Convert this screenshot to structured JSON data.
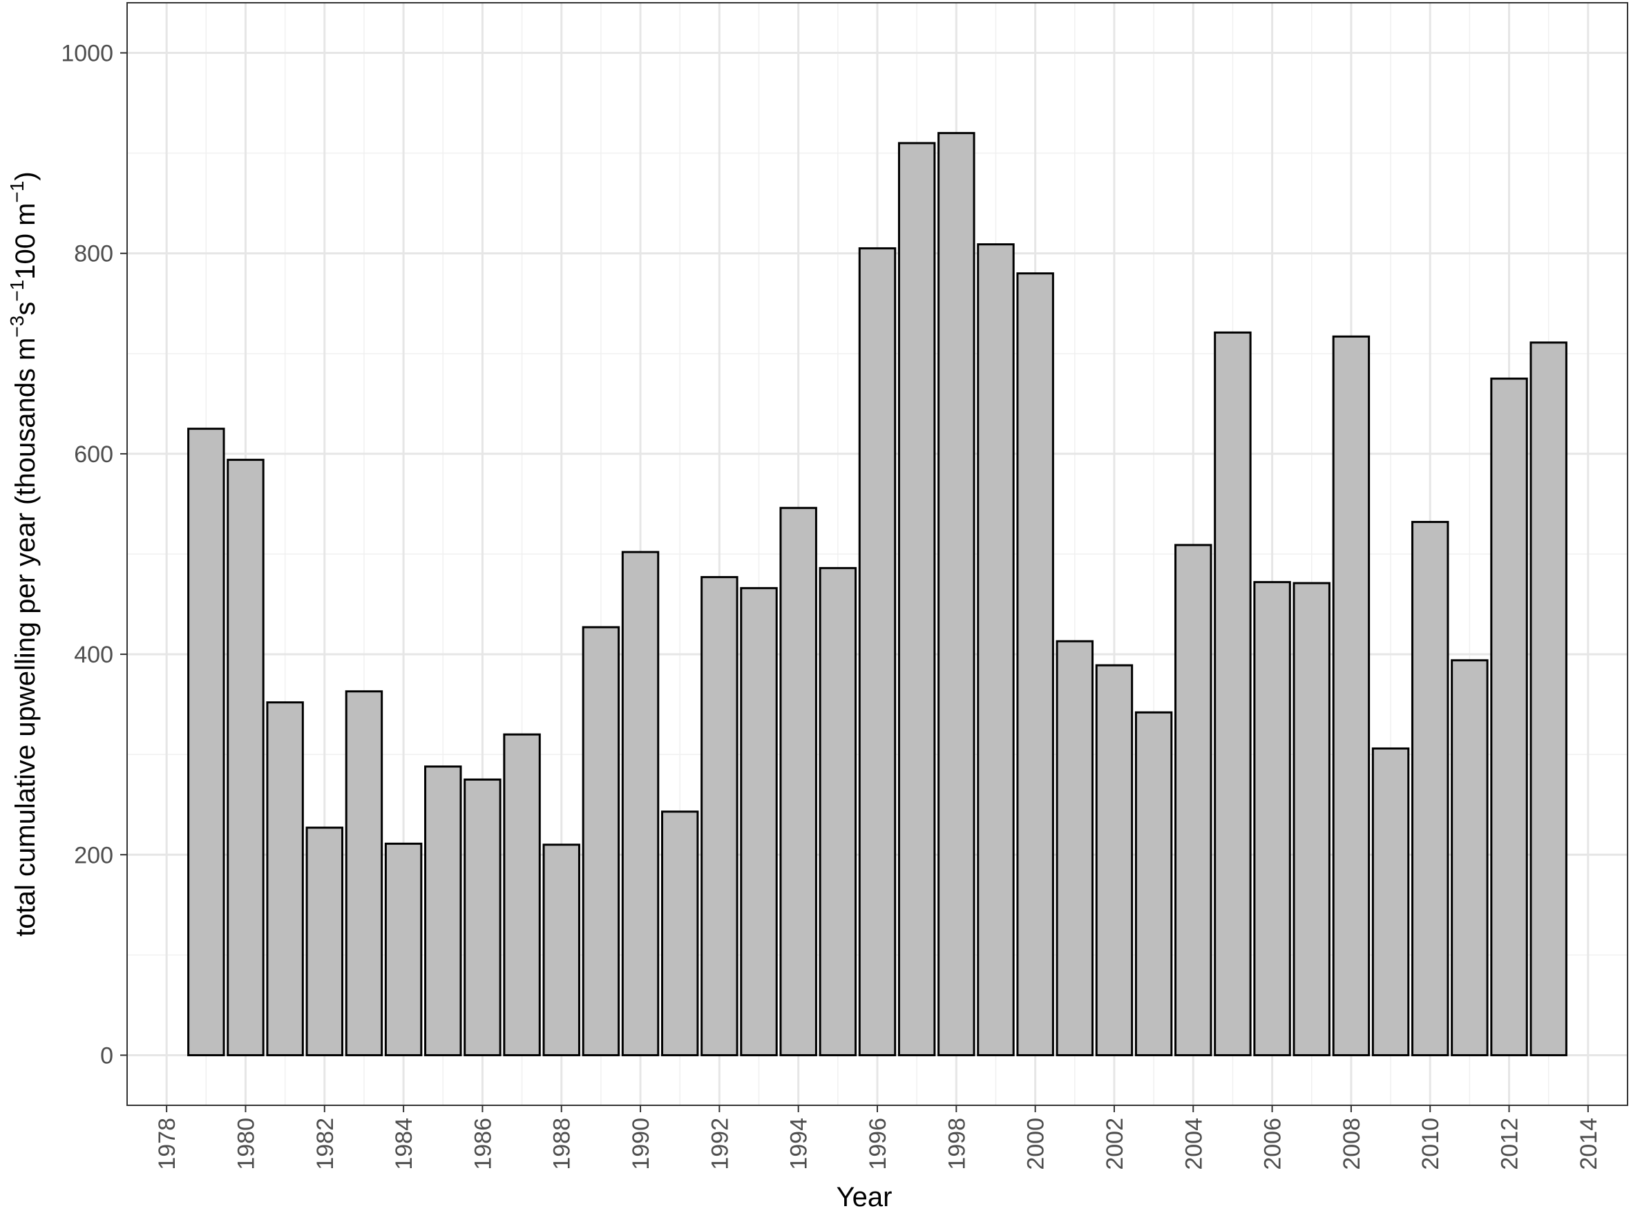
{
  "chart_data": {
    "type": "bar",
    "xlabel": "Year",
    "ylabel": "total cumulative upwelling per year (thousands m^-3 s^-1 100 m^-1)",
    "ylabel_parts": [
      {
        "text": "total cumulative upwelling per year (thousands m",
        "sup": false
      },
      {
        "text": "−3",
        "sup": true
      },
      {
        "text": "s",
        "sup": false
      },
      {
        "text": "−1",
        "sup": true
      },
      {
        "text": "100 m",
        "sup": false
      },
      {
        "text": "−1",
        "sup": true
      },
      {
        "text": ")",
        "sup": false
      }
    ],
    "xlim": [
      1977,
      2015
    ],
    "ylim": [
      -50,
      1050
    ],
    "grid": true,
    "bar_width": 0.9,
    "bar_fill": "#bebebe",
    "bar_stroke": "#000000",
    "x_ticks": [
      1978,
      1980,
      1982,
      1984,
      1986,
      1988,
      1990,
      1992,
      1994,
      1996,
      1998,
      2000,
      2002,
      2004,
      2006,
      2008,
      2010,
      2012,
      2014
    ],
    "y_ticks": [
      0,
      200,
      400,
      600,
      800,
      1000
    ],
    "categories": [
      1979,
      1980,
      1981,
      1982,
      1983,
      1984,
      1985,
      1986,
      1987,
      1988,
      1989,
      1990,
      1991,
      1992,
      1993,
      1994,
      1995,
      1996,
      1997,
      1998,
      1999,
      2000,
      2001,
      2002,
      2003,
      2004,
      2005,
      2006,
      2007,
      2008,
      2009,
      2010,
      2011,
      2012,
      2013
    ],
    "values": [
      625,
      594,
      352,
      227,
      363,
      211,
      288,
      275,
      320,
      210,
      427,
      502,
      243,
      477,
      466,
      546,
      486,
      805,
      910,
      920,
      809,
      780,
      413,
      389,
      342,
      509,
      721,
      472,
      471,
      717,
      306,
      532,
      394,
      675,
      711
    ]
  }
}
